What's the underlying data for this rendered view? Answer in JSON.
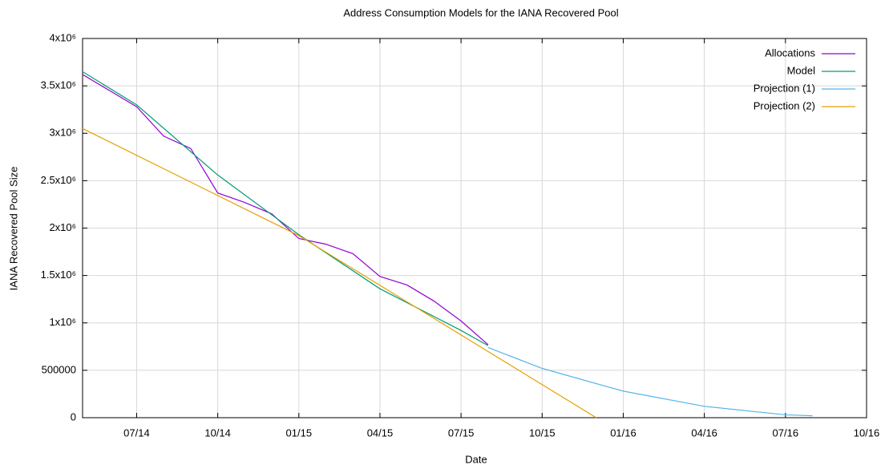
{
  "chart_data": {
    "type": "line",
    "title": "Address Consumption Models for the IANA Recovered Pool",
    "x_label": "Date",
    "y_label": "IANA Recovered Pool Size",
    "xlim": [
      "05/14",
      "10/16"
    ],
    "xticks": [
      "07/14",
      "10/14",
      "01/15",
      "04/15",
      "07/15",
      "10/15",
      "01/16",
      "04/16",
      "07/16",
      "10/16"
    ],
    "ylim": [
      0,
      4000000
    ],
    "yticks": [
      0,
      500000,
      {
        "value": 1000000,
        "label": "1x10⁶"
      },
      {
        "value": 1500000,
        "label": "1.5x10⁶"
      },
      {
        "value": 2000000,
        "label": "2x10⁶"
      },
      {
        "value": 2500000,
        "label": "2.5x10⁶"
      },
      {
        "value": 3000000,
        "label": "3x10⁶"
      },
      {
        "value": 3500000,
        "label": "3.5x10⁶"
      },
      {
        "value": 4000000,
        "label": "4x10⁶"
      }
    ],
    "grid": true,
    "legend": "top-right",
    "series": [
      {
        "name": "Allocations",
        "color": "#9400d3",
        "x": [
          "05/14",
          "06/14",
          "07/14",
          "08/14",
          "09/14",
          "10/14",
          "11/14",
          "12/14",
          "01/15",
          "02/15",
          "03/15",
          "04/15",
          "05/15",
          "06/15",
          "07/15",
          "08/15"
        ],
        "values": [
          3620000,
          3450000,
          3280000,
          2970000,
          2840000,
          2370000,
          2270000,
          2150000,
          1890000,
          1830000,
          1730000,
          1490000,
          1400000,
          1230000,
          1020000,
          770000
        ]
      },
      {
        "name": "Model",
        "color": "#009e73",
        "x": [
          "05/14",
          "07/14",
          "10/14",
          "01/15",
          "04/15",
          "07/15",
          "08/15"
        ],
        "values": [
          3650000,
          3300000,
          2560000,
          1930000,
          1360000,
          920000,
          760000
        ]
      },
      {
        "name": "Projection (1)",
        "color": "#56b4e9",
        "x": [
          "08/15",
          "10/15",
          "01/16",
          "04/16",
          "07/16",
          "08/16"
        ],
        "values": [
          740000,
          520000,
          280000,
          120000,
          30000,
          20000
        ]
      },
      {
        "name": "Projection (2)",
        "color": "#e69f00",
        "x": [
          "05/14",
          "01/15",
          "12/15"
        ],
        "values": [
          3050000,
          1920000,
          0
        ]
      }
    ]
  }
}
